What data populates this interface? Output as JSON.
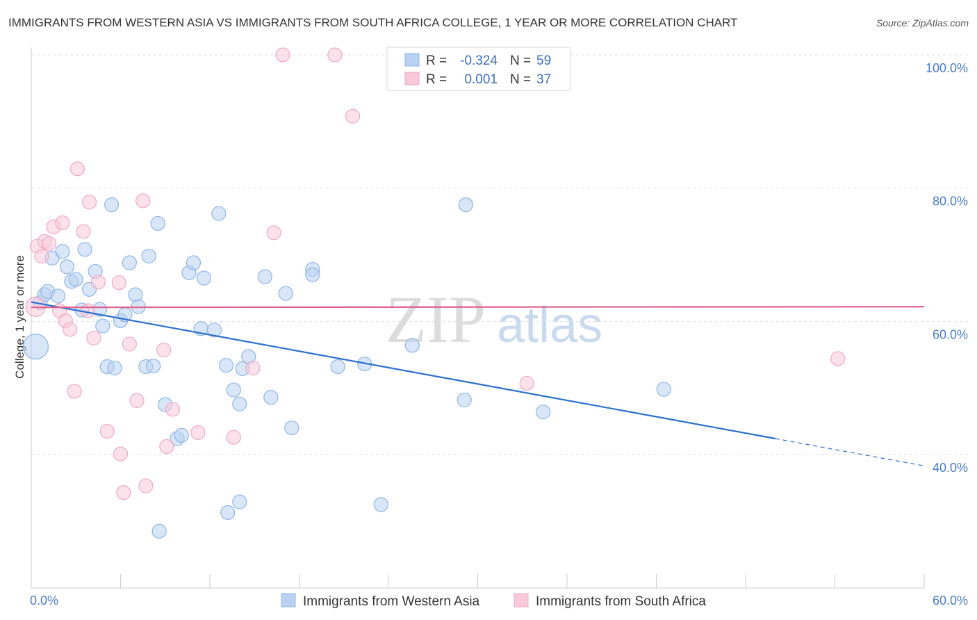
{
  "chart_data": {
    "type": "scatter",
    "title": "IMMIGRANTS FROM WESTERN ASIA VS IMMIGRANTS FROM SOUTH AFRICA COLLEGE, 1 YEAR OR MORE CORRELATION CHART",
    "source": "Source: ZipAtlas.com",
    "ylabel": "College, 1 year or more",
    "xlabel": "",
    "xlim": [
      0,
      60
    ],
    "ylim": [
      20,
      104
    ],
    "x_tick_labels": [
      "0.0%",
      "60.0%"
    ],
    "y_ticks": [
      40,
      60,
      80,
      100
    ],
    "y_tick_labels": [
      "40.0%",
      "60.0%",
      "80.0%",
      "100.0%"
    ],
    "grid": true,
    "watermark": {
      "zip": "ZIP",
      "atlas": "atlas"
    },
    "legend": [
      {
        "r_label": "R =",
        "r_value": "-0.324",
        "n_label": "N =",
        "n_value": "59"
      },
      {
        "r_label": "R =",
        "r_value": "0.001",
        "n_label": "N =",
        "n_value": "37"
      }
    ],
    "series": [
      {
        "name": "Immigrants from Western Asia",
        "color": "#8db5e8",
        "fill": "#b9d1f2",
        "line_color": "#2a6fcf",
        "trend": {
          "x0": 0,
          "y0": 62.9,
          "x1": 60,
          "y1": 38.3,
          "solid_until": 50
        },
        "points": [
          [
            0.3,
            56.2,
            18
          ],
          [
            0.6,
            62.8,
            10
          ],
          [
            0.9,
            64.0,
            10
          ],
          [
            1.1,
            64.5,
            10
          ],
          [
            1.4,
            69.5,
            10
          ],
          [
            1.8,
            63.8,
            10
          ],
          [
            2.1,
            70.5,
            10
          ],
          [
            2.4,
            68.2,
            10
          ],
          [
            2.7,
            66.0,
            10
          ],
          [
            3.0,
            66.3,
            10
          ],
          [
            3.4,
            61.7,
            10
          ],
          [
            3.6,
            70.8,
            10
          ],
          [
            3.9,
            64.8,
            10
          ],
          [
            4.3,
            67.5,
            10
          ],
          [
            4.6,
            61.8,
            10
          ],
          [
            4.8,
            59.3,
            10
          ],
          [
            5.1,
            53.2,
            10
          ],
          [
            5.6,
            53.0,
            10
          ],
          [
            5.4,
            77.5,
            10
          ],
          [
            6.0,
            60.1,
            10
          ],
          [
            6.3,
            61.0,
            10
          ],
          [
            6.6,
            68.8,
            10
          ],
          [
            7.0,
            64.0,
            10
          ],
          [
            7.2,
            62.2,
            10
          ],
          [
            7.7,
            53.2,
            10
          ],
          [
            7.9,
            69.8,
            10
          ],
          [
            8.2,
            53.3,
            10
          ],
          [
            8.5,
            74.7,
            10
          ],
          [
            9.0,
            47.5,
            10
          ],
          [
            9.8,
            42.4,
            10
          ],
          [
            10.1,
            42.9,
            10
          ],
          [
            10.6,
            67.3,
            10
          ],
          [
            10.9,
            68.8,
            10
          ],
          [
            11.4,
            58.9,
            10
          ],
          [
            11.6,
            66.5,
            10
          ],
          [
            12.3,
            58.7,
            10
          ],
          [
            12.6,
            76.2,
            10
          ],
          [
            13.1,
            53.4,
            10
          ],
          [
            13.6,
            49.7,
            10
          ],
          [
            14.0,
            47.6,
            10
          ],
          [
            14.2,
            52.9,
            10
          ],
          [
            14.6,
            54.7,
            10
          ],
          [
            14.0,
            32.9,
            10
          ],
          [
            13.2,
            31.3,
            10
          ],
          [
            15.7,
            66.7,
            10
          ],
          [
            16.1,
            48.6,
            10
          ],
          [
            17.1,
            64.2,
            10
          ],
          [
            17.5,
            44.0,
            10
          ],
          [
            18.9,
            67.8,
            10
          ],
          [
            18.9,
            67.0,
            10
          ],
          [
            20.6,
            53.2,
            10
          ],
          [
            22.4,
            53.6,
            10
          ],
          [
            23.5,
            32.5,
            10
          ],
          [
            25.6,
            56.4,
            10
          ],
          [
            8.6,
            28.5,
            10
          ],
          [
            29.1,
            48.2,
            10
          ],
          [
            29.2,
            77.5,
            10
          ],
          [
            34.4,
            46.4,
            10
          ],
          [
            42.5,
            49.8,
            10
          ]
        ]
      },
      {
        "name": "Immigrants from South Africa",
        "color": "#f0a8c0",
        "fill": "#f8cad9",
        "line_color": "#e06090",
        "trend": {
          "x0": 0,
          "y0": 62.1,
          "x1": 60,
          "y1": 62.2,
          "solid_until": 60
        },
        "points": [
          [
            0.3,
            62.2,
            14
          ],
          [
            0.4,
            71.3,
            10
          ],
          [
            0.7,
            69.8,
            10
          ],
          [
            0.9,
            72.0,
            10
          ],
          [
            1.2,
            71.7,
            10
          ],
          [
            1.5,
            74.2,
            10
          ],
          [
            1.9,
            61.6,
            10
          ],
          [
            2.1,
            74.8,
            10
          ],
          [
            2.3,
            60.1,
            10
          ],
          [
            2.6,
            58.8,
            10
          ],
          [
            2.9,
            49.5,
            10
          ],
          [
            3.1,
            82.9,
            10
          ],
          [
            3.5,
            73.5,
            10
          ],
          [
            3.8,
            61.6,
            10
          ],
          [
            3.9,
            77.9,
            10
          ],
          [
            4.2,
            57.5,
            10
          ],
          [
            4.5,
            65.9,
            10
          ],
          [
            5.1,
            43.5,
            10
          ],
          [
            5.9,
            65.8,
            10
          ],
          [
            6.2,
            34.3,
            10
          ],
          [
            6.6,
            56.6,
            10
          ],
          [
            6.0,
            40.1,
            10
          ],
          [
            7.1,
            48.1,
            10
          ],
          [
            7.5,
            78.1,
            10
          ],
          [
            7.7,
            35.3,
            10
          ],
          [
            8.9,
            55.7,
            10
          ],
          [
            9.1,
            41.2,
            10
          ],
          [
            9.5,
            46.8,
            10
          ],
          [
            11.2,
            43.3,
            10
          ],
          [
            13.6,
            42.6,
            10
          ],
          [
            14.9,
            53.0,
            10
          ],
          [
            16.3,
            73.3,
            10
          ],
          [
            16.9,
            100.0,
            10
          ],
          [
            20.4,
            100.0,
            10
          ],
          [
            21.6,
            90.8,
            10
          ],
          [
            33.3,
            50.7,
            10
          ],
          [
            54.2,
            54.4,
            10
          ]
        ]
      }
    ]
  },
  "bottom_legend": [
    {
      "label": "Immigrants from Western Asia"
    },
    {
      "label": "Immigrants from South Africa"
    }
  ]
}
